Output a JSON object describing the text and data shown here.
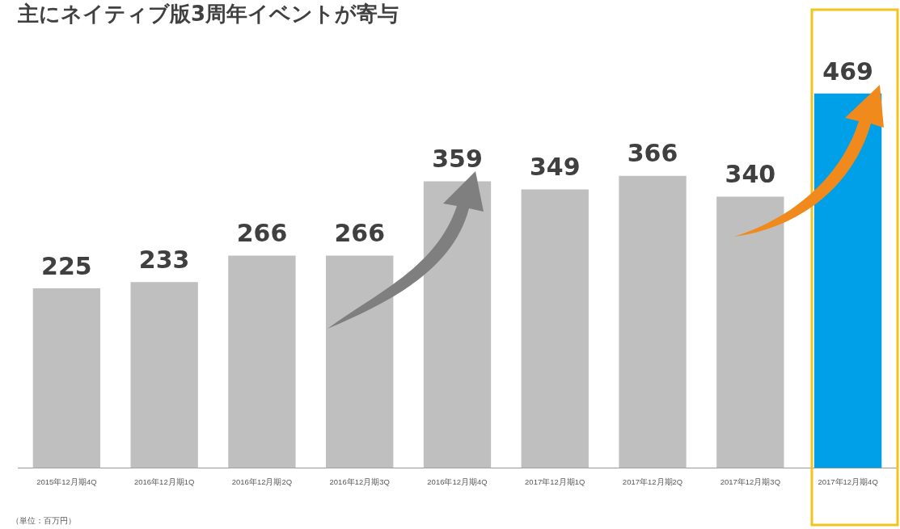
{
  "chart_data": {
    "type": "bar",
    "title": "主にネイティブ版3周年イベントが寄与",
    "categories": [
      "2015年12月期4Q",
      "2016年12月期1Q",
      "2016年12月期2Q",
      "2016年12月期3Q",
      "2016年12月期4Q",
      "2017年12月期1Q",
      "2017年12月期2Q",
      "2017年12月期3Q",
      "2017年12月期4Q"
    ],
    "values": [
      225,
      233,
      266,
      266,
      359,
      349,
      366,
      340,
      469
    ],
    "colors": [
      "#bfbfbf",
      "#bfbfbf",
      "#bfbfbf",
      "#bfbfbf",
      "#bfbfbf",
      "#bfbfbf",
      "#bfbfbf",
      "#bfbfbf",
      "#00a0e9"
    ],
    "data_labels": true,
    "grid": false,
    "legend": false,
    "annotations": [
      "（単位：百万円）"
    ]
  }
}
